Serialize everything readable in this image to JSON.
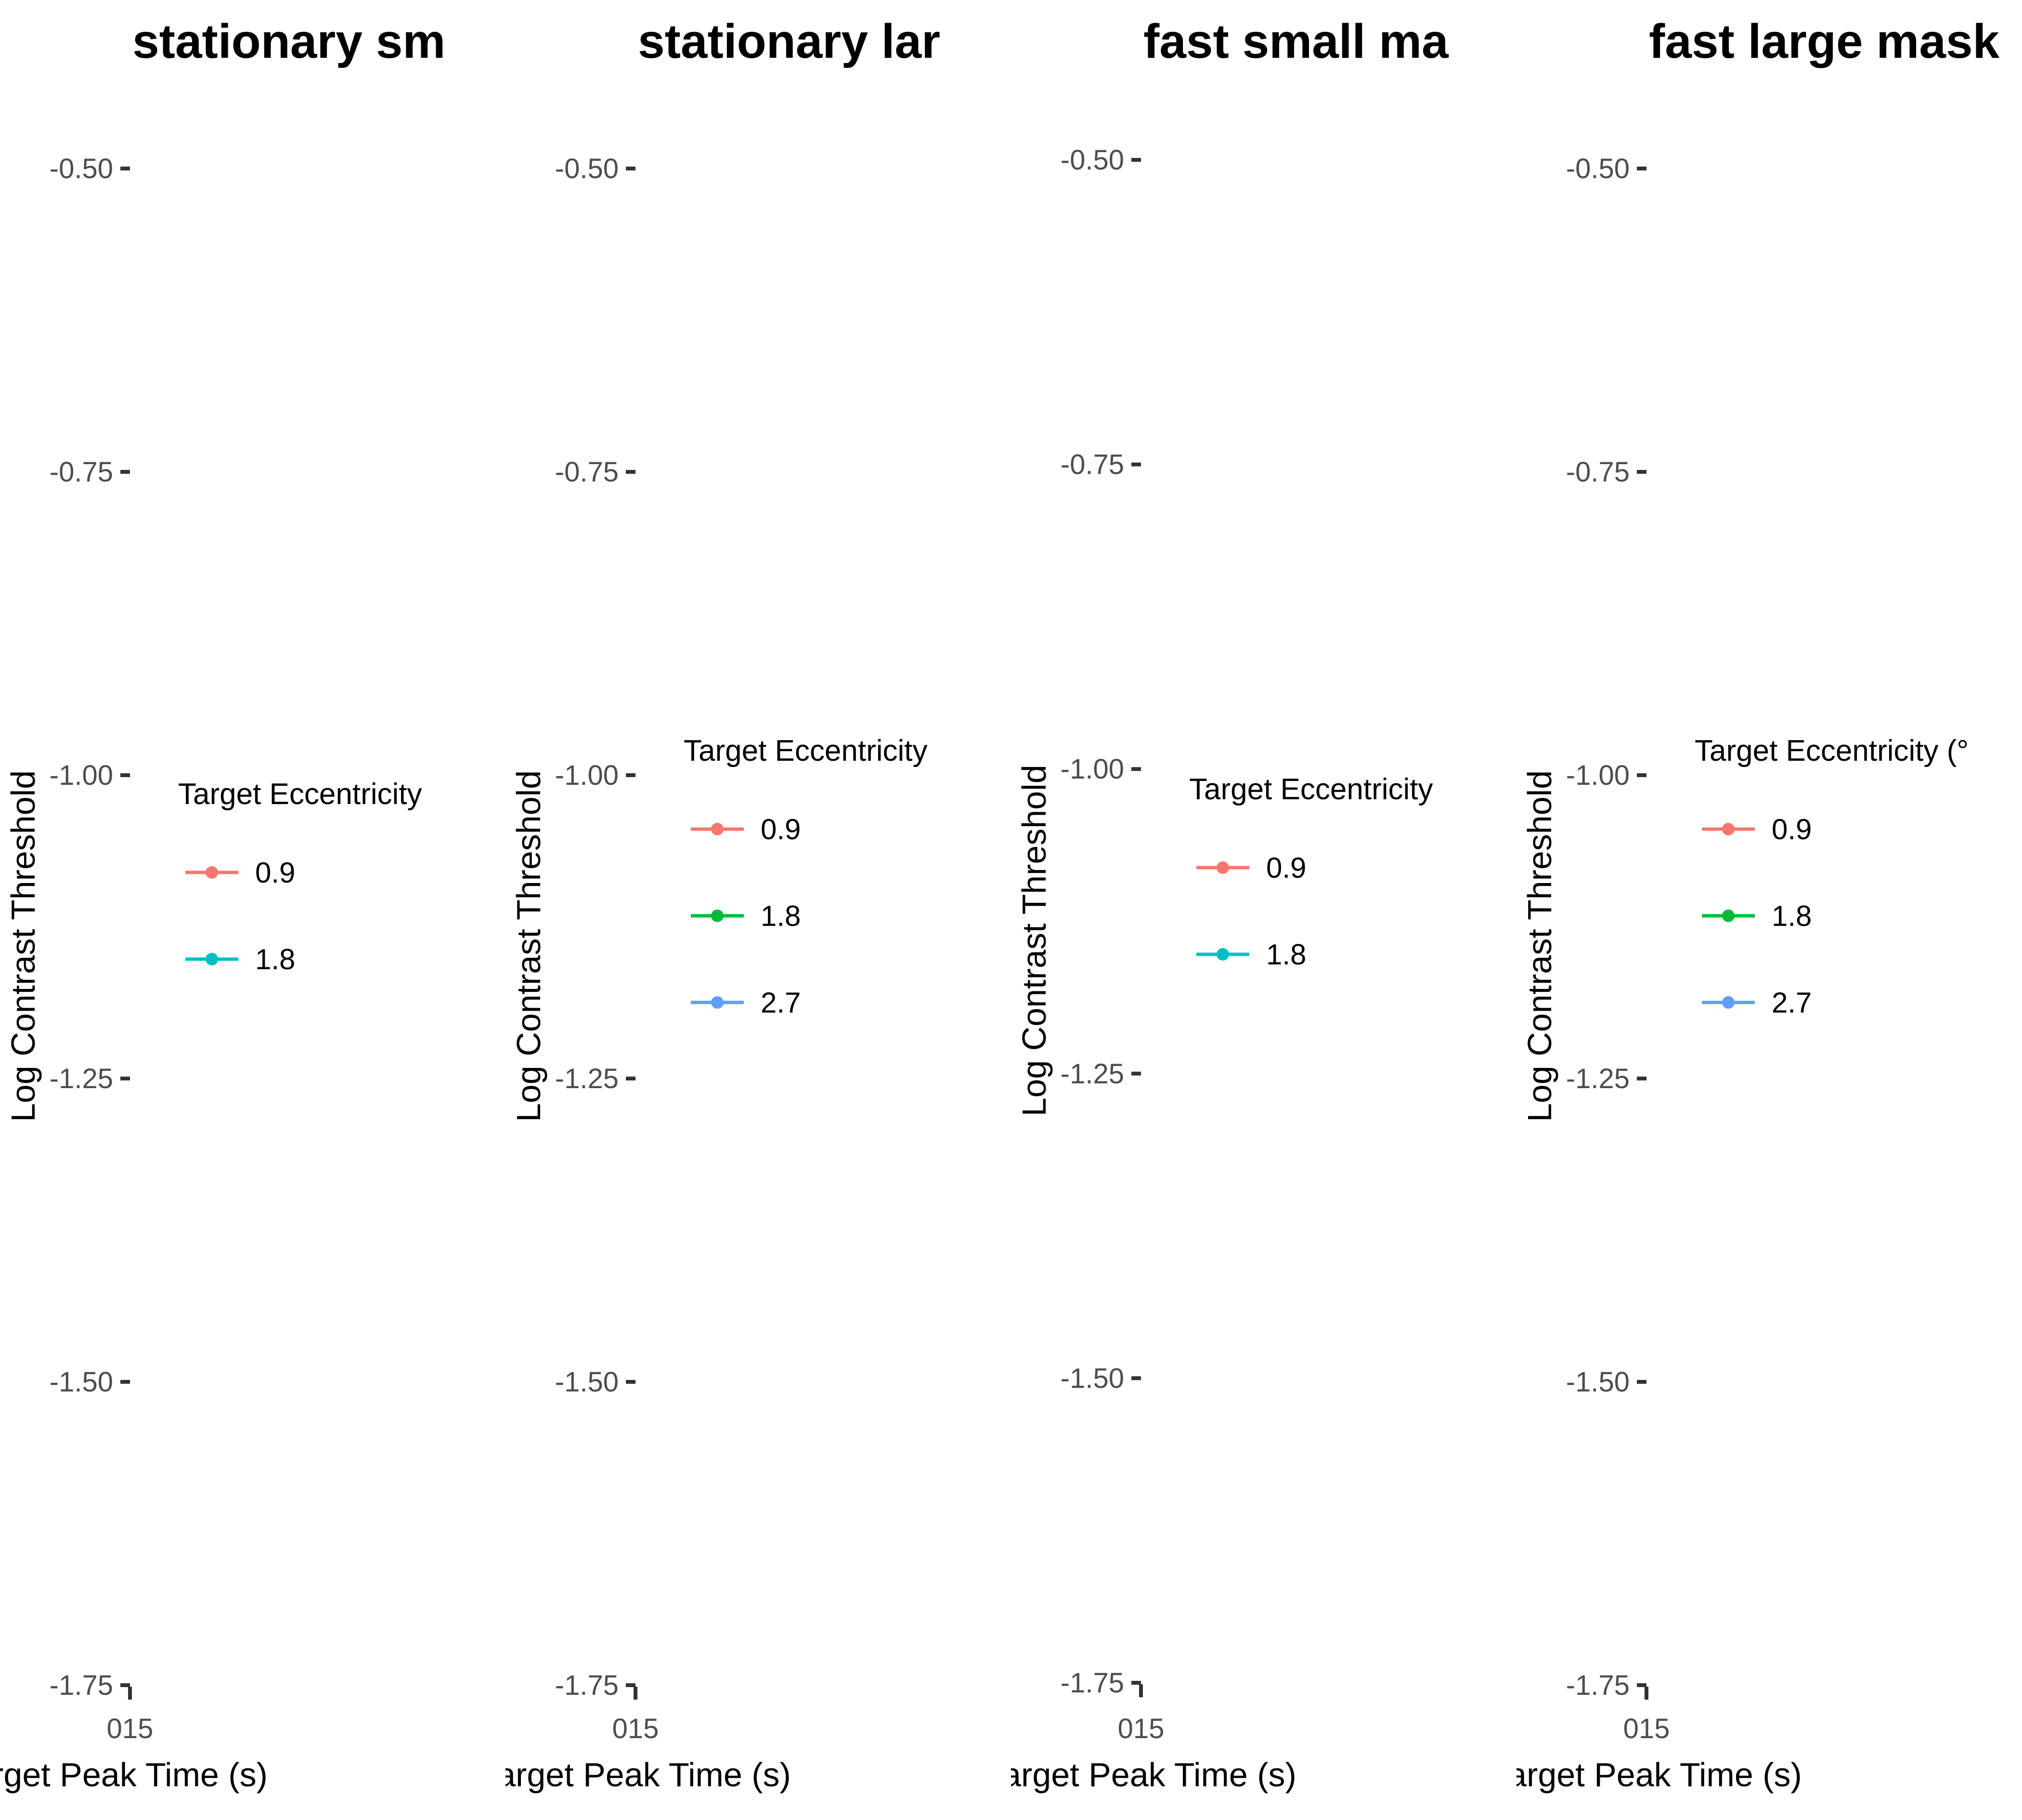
{
  "chart_data": [
    {
      "type": "line",
      "title": "stationary sm",
      "xlabel": "rget Peak Time (s)",
      "ylabel": "Log Contrast Threshold",
      "x_ticks": [
        "015"
      ],
      "y_ticks": [
        -0.5,
        -0.75,
        -1.0,
        -1.25,
        -1.5,
        -1.75
      ],
      "ylim": [
        -1.75,
        -0.5
      ],
      "grid": false,
      "legend": {
        "title": "Target Eccentricity",
        "placement": "right",
        "entries": [
          {
            "label": "0.9",
            "color": "#F8766D"
          },
          {
            "label": "1.8",
            "color": "#00BFC4"
          }
        ]
      },
      "series": [
        {
          "name": "0.9",
          "color": "#F8766D",
          "values": []
        },
        {
          "name": "1.8",
          "color": "#00BFC4",
          "values": []
        }
      ]
    },
    {
      "type": "line",
      "title": "stationary lar",
      "xlabel": "Target Peak Time (s)",
      "ylabel": "Log Contrast Threshold",
      "x_ticks": [
        "015"
      ],
      "y_ticks": [
        -0.5,
        -0.75,
        -1.0,
        -1.25,
        -1.5,
        -1.75
      ],
      "ylim": [
        -1.75,
        -0.5
      ],
      "grid": false,
      "legend": {
        "title": "Target Eccentricity",
        "placement": "right",
        "entries": [
          {
            "label": "0.9",
            "color": "#F8766D"
          },
          {
            "label": "1.8",
            "color": "#00BA38"
          },
          {
            "label": "2.7",
            "color": "#619CFF"
          }
        ]
      },
      "series": [
        {
          "name": "0.9",
          "color": "#F8766D",
          "values": []
        },
        {
          "name": "1.8",
          "color": "#00BA38",
          "values": []
        },
        {
          "name": "2.7",
          "color": "#619CFF",
          "values": []
        }
      ]
    },
    {
      "type": "line",
      "title": "fast small ma",
      "xlabel": "Target Peak Time (s)",
      "ylabel": "Log Contrast Threshold",
      "x_ticks": [
        "015"
      ],
      "y_ticks": [
        -0.5,
        -0.75,
        -1.0,
        -1.25,
        -1.5,
        -1.75
      ],
      "ylim": [
        -1.75,
        -0.5
      ],
      "grid": false,
      "legend": {
        "title": "Target Eccentricity",
        "placement": "right",
        "entries": [
          {
            "label": "0.9",
            "color": "#F8766D"
          },
          {
            "label": "1.8",
            "color": "#00BFC4"
          }
        ]
      },
      "series": [
        {
          "name": "0.9",
          "color": "#F8766D",
          "values": []
        },
        {
          "name": "1.8",
          "color": "#00BFC4",
          "values": []
        }
      ]
    },
    {
      "type": "line",
      "title": "fast large mask",
      "xlabel": "Target Peak Time (s)",
      "ylabel": "Log Contrast Threshold",
      "x_ticks": [
        "015"
      ],
      "y_ticks": [
        -0.5,
        -0.75,
        -1.0,
        -1.25,
        -1.5,
        -1.75
      ],
      "ylim": [
        -1.75,
        -0.5
      ],
      "grid": false,
      "legend": {
        "title": "Target Eccentricity (°",
        "placement": "right",
        "entries": [
          {
            "label": "0.9",
            "color": "#F8766D"
          },
          {
            "label": "1.8",
            "color": "#00BA38"
          },
          {
            "label": "2.7",
            "color": "#619CFF"
          }
        ]
      },
      "series": [
        {
          "name": "0.9",
          "color": "#F8766D",
          "values": []
        },
        {
          "name": "1.8",
          "color": "#00BA38",
          "values": []
        },
        {
          "name": "2.7",
          "color": "#619CFF",
          "values": []
        }
      ]
    }
  ]
}
